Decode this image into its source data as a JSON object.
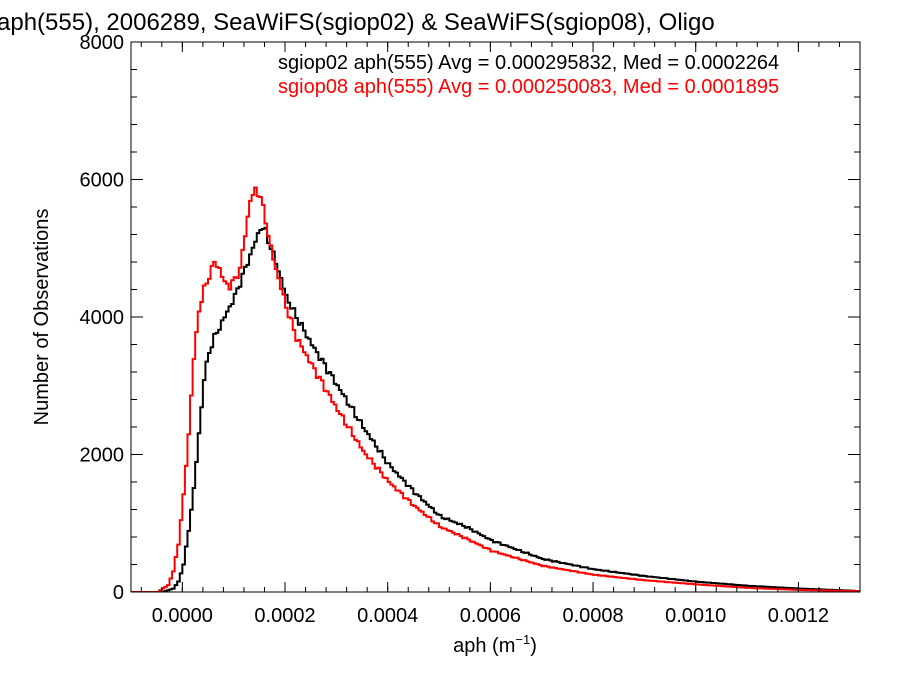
{
  "chart_data": {
    "type": "line",
    "title": "aph(555), 2006289, SeaWiFS(sgiop02) & SeaWiFS(sgiop08), Oligo",
    "xlabel": "aph (m",
    "xlabel_sup": "−1",
    "xlabel_close": ")",
    "ylabel": "Number of Observations",
    "xlim": [
      -0.0001,
      0.00132
    ],
    "ylim": [
      0,
      8000
    ],
    "x_ticks": [
      0.0,
      0.0002,
      0.0004,
      0.0006,
      0.0008,
      0.001,
      0.0012
    ],
    "x_tick_labels": [
      "0.0000",
      "0.0002",
      "0.0004",
      "0.0006",
      "0.0008",
      "0.0010",
      "0.0012"
    ],
    "y_ticks": [
      0,
      2000,
      4000,
      6000,
      8000
    ],
    "y_tick_labels": [
      "0",
      "2000",
      "4000",
      "6000",
      "8000"
    ],
    "grid": false,
    "annotations": [
      {
        "text": "sgiop02 aph(555) Avg = 0.000295832, Med = 0.0002264",
        "color": "#000000"
      },
      {
        "text": "sgiop08 aph(555) Avg = 0.000250083, Med = 0.0001895",
        "color": "#ff0000"
      }
    ],
    "series": [
      {
        "color": "#000000",
        "x": [
          -0.0001,
          -4e-05,
          -2e-05,
          -1e-05,
          0.0,
          1e-05,
          2e-05,
          3e-05,
          4e-05,
          5e-05,
          6e-05,
          8e-05,
          0.0001,
          0.00012,
          0.00014,
          0.00015,
          0.00016,
          0.00017,
          0.00018,
          0.0002,
          0.00022,
          0.00025,
          0.0003,
          0.00035,
          0.0004,
          0.00045,
          0.0005,
          0.00055,
          0.0006,
          0.0007,
          0.0008,
          0.0009,
          0.001,
          0.0011,
          0.0012,
          0.0013,
          0.00132
        ],
        "values": [
          0,
          0,
          50,
          150,
          400,
          900,
          1500,
          2300,
          3100,
          3500,
          3700,
          4000,
          4300,
          4700,
          5100,
          5300,
          5250,
          5000,
          4800,
          4300,
          4000,
          3600,
          3000,
          2400,
          1850,
          1450,
          1100,
          950,
          750,
          480,
          330,
          230,
          150,
          90,
          50,
          20,
          10
        ]
      },
      {
        "color": "#ff0000",
        "x": [
          -0.0001,
          -5e-05,
          -3e-05,
          -2e-05,
          -1e-05,
          0.0,
          1e-05,
          2e-05,
          3e-05,
          4e-05,
          5e-05,
          6e-05,
          7e-05,
          8e-05,
          9e-05,
          0.0001,
          0.00011,
          0.00012,
          0.00013,
          0.00014,
          0.00015,
          0.00016,
          0.00017,
          0.00018,
          0.0002,
          0.00022,
          0.00025,
          0.0003,
          0.00035,
          0.0004,
          0.00045,
          0.0005,
          0.00055,
          0.0006,
          0.0007,
          0.0008,
          0.0009,
          0.001,
          0.0011,
          0.0012,
          0.0013,
          0.00132
        ],
        "values": [
          0,
          0,
          100,
          300,
          700,
          1400,
          2300,
          3400,
          4100,
          4400,
          4600,
          4800,
          4700,
          4500,
          4450,
          4550,
          4700,
          5200,
          5700,
          5850,
          5750,
          5400,
          5000,
          4700,
          4150,
          3700,
          3300,
          2650,
          2050,
          1600,
          1250,
          950,
          780,
          600,
          380,
          250,
          170,
          110,
          60,
          30,
          15,
          10
        ]
      }
    ]
  }
}
